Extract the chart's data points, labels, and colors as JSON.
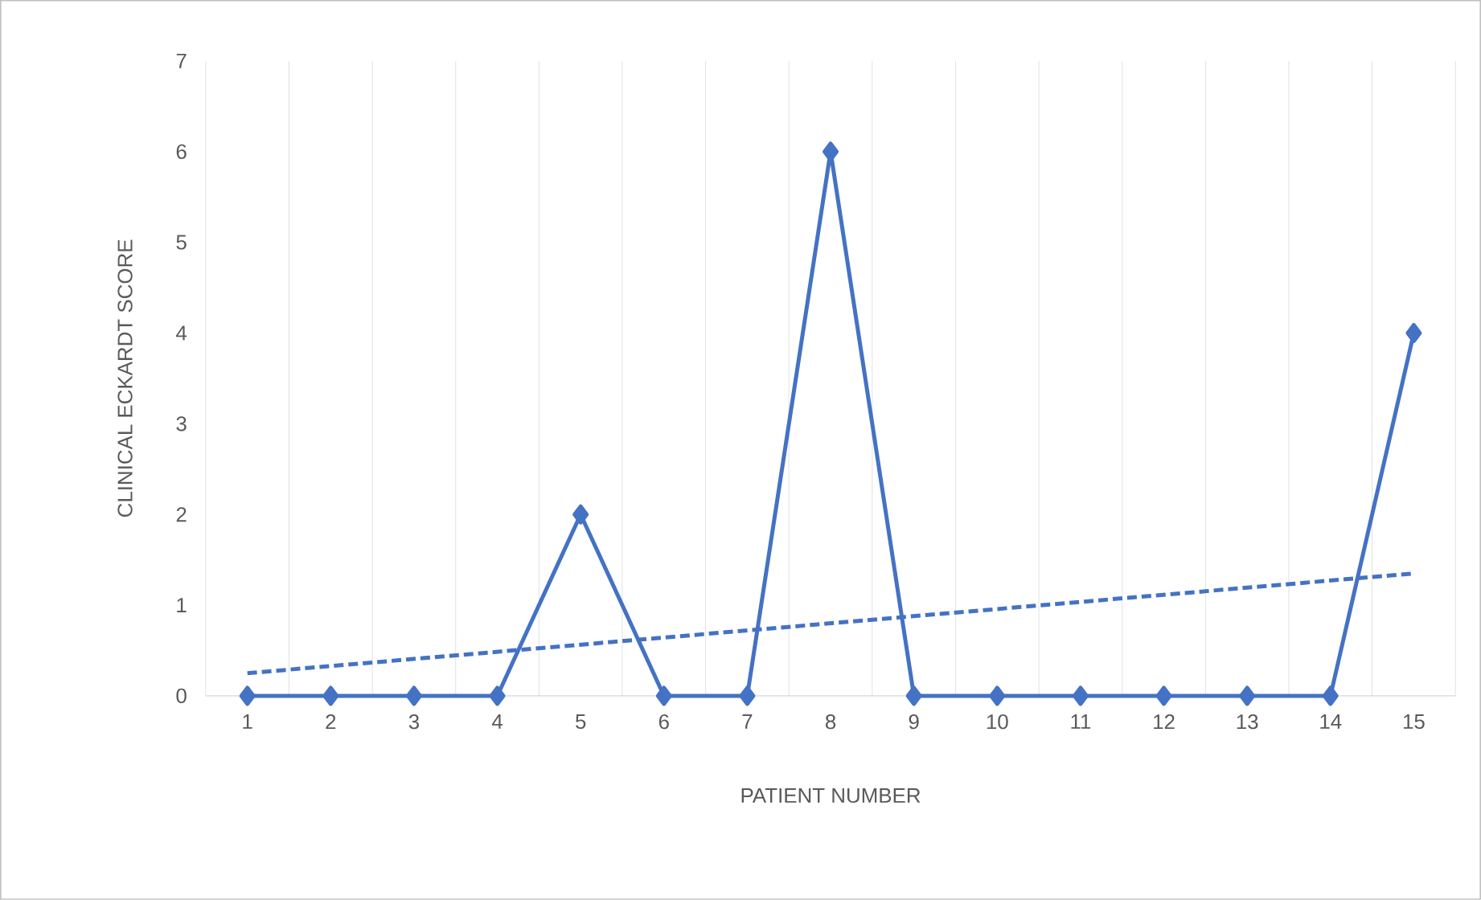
{
  "chart_data": {
    "type": "line",
    "xlabel": "PATIENT NUMBER",
    "ylabel": "CLINICAL ECKARDT SCORE",
    "x": [
      1,
      2,
      3,
      4,
      5,
      6,
      7,
      8,
      9,
      10,
      11,
      12,
      13,
      14,
      15
    ],
    "xlim": [
      0.5,
      15.5
    ],
    "xticks": [
      1,
      2,
      3,
      4,
      5,
      6,
      7,
      8,
      9,
      10,
      11,
      12,
      13,
      14,
      15
    ],
    "ylim": [
      0,
      7
    ],
    "yticks": [
      0,
      1,
      2,
      3,
      4,
      5,
      6,
      7
    ],
    "grid": "x",
    "series": [
      {
        "color": "#4472c4",
        "marker": "diamond",
        "line_style": "solid",
        "values": [
          0,
          0,
          0,
          0,
          2,
          0,
          0,
          6,
          0,
          0,
          0,
          0,
          0,
          0,
          4
        ]
      },
      {
        "color": "#4472c4",
        "marker": "none",
        "line_style": "dashed",
        "x": [
          1,
          15
        ],
        "values": [
          0.25,
          1.35
        ]
      }
    ]
  }
}
